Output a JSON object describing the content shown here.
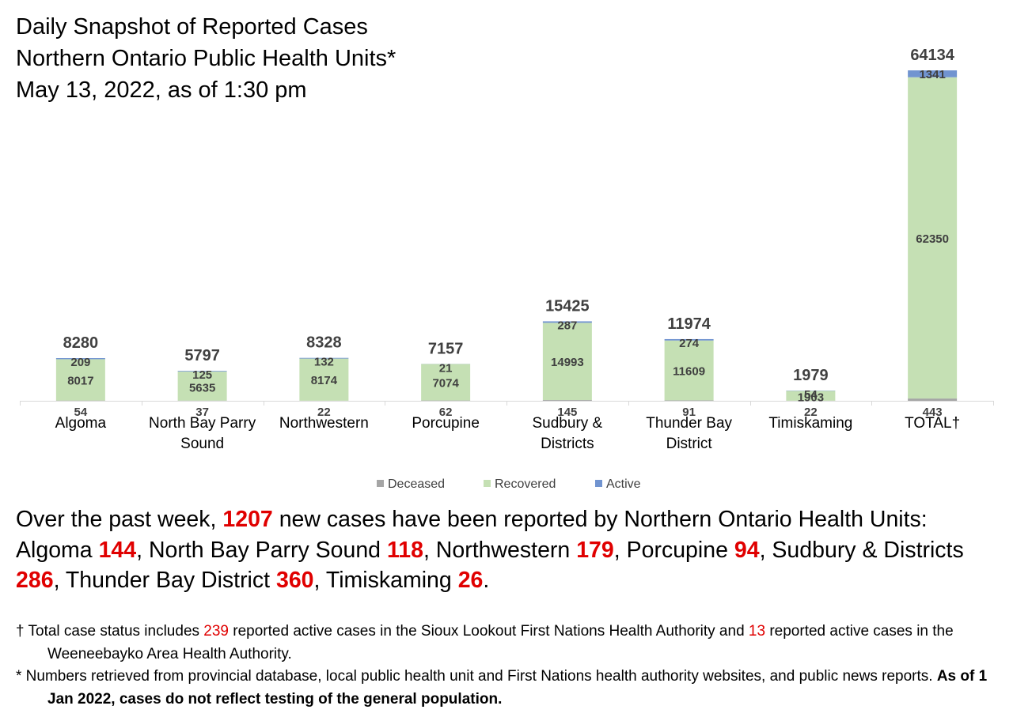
{
  "title_lines": [
    "Daily Snapshot of Reported Cases",
    "Northern Ontario Public Health Units*",
    "May 13, 2022, as of 1:30 pm"
  ],
  "colors": {
    "deceased": "#a5a5a5",
    "recovered": "#c5e0b4",
    "active": "#7194d0",
    "highlight": "#e00000"
  },
  "chart_data": {
    "type": "bar",
    "stacked": true,
    "categories": [
      [
        "Algoma"
      ],
      [
        "North Bay Parry",
        "Sound"
      ],
      [
        "Northwestern"
      ],
      [
        "Porcupine"
      ],
      [
        "Sudbury &",
        "Districts"
      ],
      [
        "Thunder Bay",
        "District"
      ],
      [
        "Timiskaming"
      ],
      [
        "TOTAL†"
      ]
    ],
    "series": [
      {
        "name": "Deceased",
        "values": [
          54,
          37,
          22,
          62,
          145,
          91,
          22,
          443
        ]
      },
      {
        "name": "Recovered",
        "values": [
          8017,
          5635,
          8174,
          7074,
          14993,
          11609,
          1903,
          62350
        ]
      },
      {
        "name": "Active",
        "values": [
          209,
          125,
          132,
          21,
          287,
          274,
          54,
          1341
        ]
      }
    ],
    "totals": [
      8280,
      5797,
      8328,
      7157,
      15425,
      11974,
      1979,
      64134
    ],
    "ylim": [
      0,
      64134
    ],
    "legend_position": "bottom"
  },
  "summary": {
    "intro_before": "Over the past week, ",
    "total": "1207",
    "intro_after": " new cases have been reported by Northern Ontario Health Units:",
    "items": [
      {
        "name": "Algoma ",
        "value": "144",
        "sep": ", "
      },
      {
        "name": "North Bay Parry Sound ",
        "value": "118",
        "sep": ", "
      },
      {
        "name": "Northwestern ",
        "value": "179",
        "sep": ", "
      },
      {
        "name": "Porcupine ",
        "value": "94",
        "sep": ", "
      },
      {
        "name": "Sudbury & Districts ",
        "value": "286",
        "sep": ", "
      },
      {
        "name": "Thunder Bay District ",
        "value": "360",
        "sep": ", "
      },
      {
        "name": "Timiskaming ",
        "value": "26",
        "sep": "."
      }
    ]
  },
  "footnotes": {
    "dagger_1": "† Total case status includes ",
    "dagger_num1": "239",
    "dagger_2": " reported active cases in the Sioux Lookout First Nations Health Authority and ",
    "dagger_num2": "13",
    "dagger_3": " reported active cases in the Weeneebayko Area Health Authority.",
    "star_1": "* Numbers retrieved from provincial database, local public health unit and First Nations health authority websites, and public news reports. ",
    "star_bold": "As of 1 Jan 2022, cases do not reflect testing of the general population."
  }
}
